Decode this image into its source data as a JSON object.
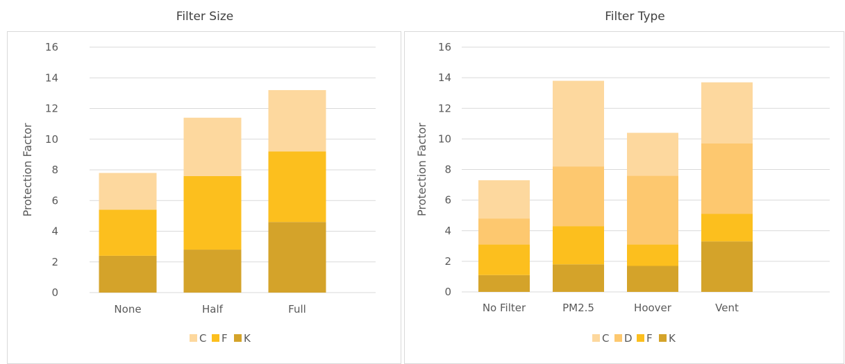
{
  "chart_data": [
    {
      "type": "bar",
      "stacked": true,
      "title": "Filter Size",
      "ylabel": "Protection Factor",
      "xlabel": "",
      "ylim": [
        0,
        16
      ],
      "yticks": [
        "0",
        "2",
        "4",
        "6",
        "8",
        "10",
        "12",
        "14",
        "16"
      ],
      "categories": [
        "None",
        "Half",
        "Full"
      ],
      "series": [
        {
          "name": "K",
          "color": "#D4A32A",
          "values": [
            2.4,
            2.8,
            4.6
          ]
        },
        {
          "name": "F",
          "color": "#FCBF1E",
          "values": [
            3.0,
            4.8,
            4.6
          ]
        },
        {
          "name": "C",
          "color": "#FDD89E",
          "values": [
            2.4,
            3.8,
            4.0
          ]
        }
      ],
      "legend_order": [
        "C",
        "F",
        "K"
      ],
      "legend_position": "bottom",
      "grid": true
    },
    {
      "type": "bar",
      "stacked": true,
      "title": "Filter Type",
      "ylabel": "Protection Factor",
      "xlabel": "",
      "ylim": [
        0,
        16
      ],
      "yticks": [
        "0",
        "2",
        "4",
        "6",
        "8",
        "10",
        "12",
        "14",
        "16"
      ],
      "categories": [
        "No Filter",
        "PM2.5",
        "Hoover",
        "Vent"
      ],
      "series": [
        {
          "name": "K",
          "color": "#D4A32A",
          "values": [
            1.1,
            1.8,
            1.7,
            3.3
          ]
        },
        {
          "name": "F",
          "color": "#FCBF1E",
          "values": [
            2.0,
            2.5,
            1.4,
            1.8
          ]
        },
        {
          "name": "D",
          "color": "#FDC86F",
          "values": [
            1.7,
            3.9,
            4.5,
            4.6
          ]
        },
        {
          "name": "C",
          "color": "#FDD89E",
          "values": [
            2.5,
            5.6,
            2.8,
            4.0
          ]
        }
      ],
      "legend_order": [
        "C",
        "D",
        "F",
        "K"
      ],
      "legend_position": "bottom",
      "grid": true
    }
  ]
}
